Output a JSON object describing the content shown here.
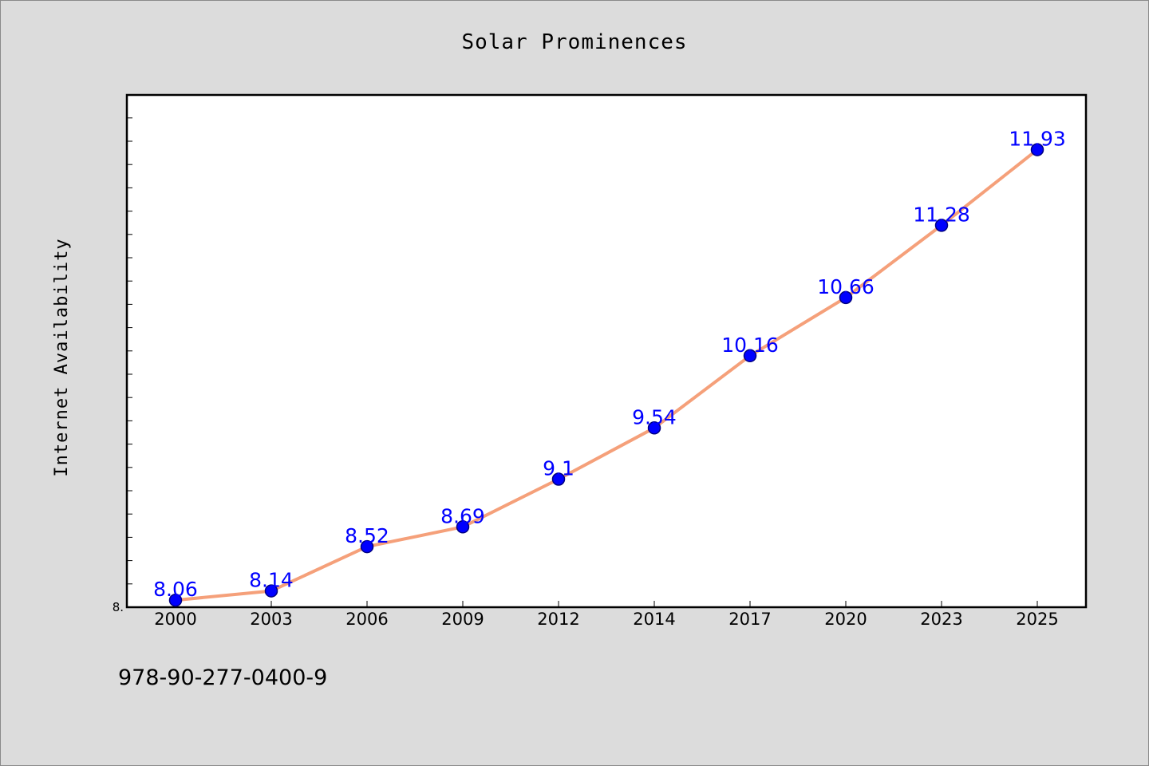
{
  "chart_data": {
    "type": "line",
    "title": "Solar Prominences",
    "xlabel": "",
    "ylabel": "Internet Availability",
    "categories": [
      "2000",
      "2003",
      "2006",
      "2009",
      "2012",
      "2014",
      "2017",
      "2020",
      "2023",
      "2025"
    ],
    "series": [
      {
        "values": [
          8.06,
          8.14,
          8.52,
          8.69,
          9.1,
          9.54,
          10.16,
          10.66,
          11.28,
          11.93
        ],
        "data_labels": [
          "8.06",
          "8.14",
          "8.52",
          "8.69",
          "9.1",
          "9.54",
          "10.16",
          "10.66",
          "11.28",
          "11.93"
        ]
      }
    ],
    "ylim": [
      8.0,
      12.4
    ],
    "yticks": [
      {
        "value": 8.0,
        "label": "8."
      }
    ],
    "grid": false,
    "legend": "none",
    "colors": {
      "line": "#f5a07a",
      "marker": "#0000ff",
      "marker_edge": "#000080",
      "data_label": "#0000ff",
      "background": "#dcdcdc",
      "plot_background": "#ffffff"
    }
  },
  "footer": {
    "id_text": "978-90-277-0400-9"
  }
}
